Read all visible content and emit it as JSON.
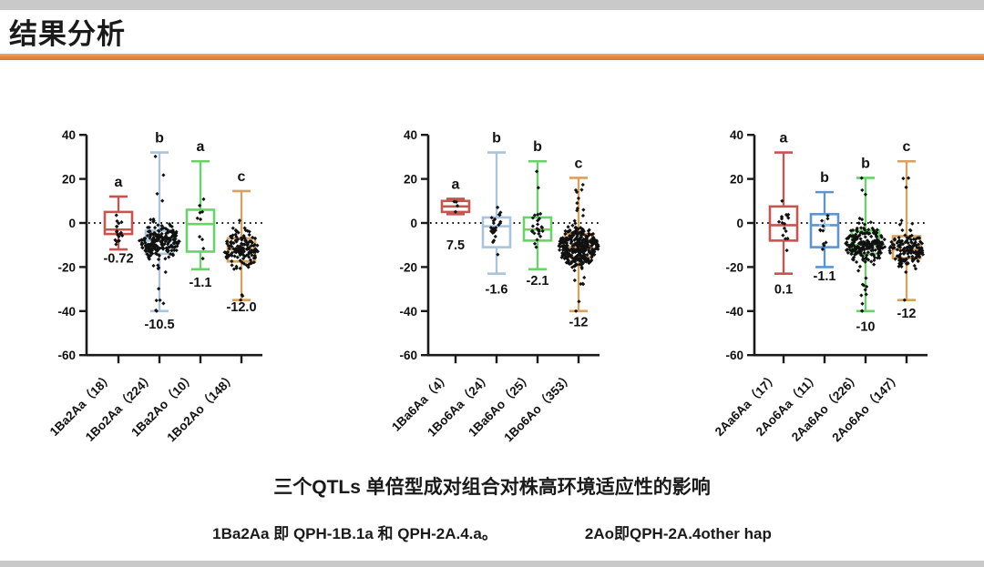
{
  "header": {
    "title": "结果分析",
    "accent_color": "#E2873E",
    "frame_bar_color": "#C9C9C9"
  },
  "caption": {
    "text": "三个QTLs 单倍型成对组合对株高环境适应性的影响",
    "footnote_left": "1Ba2Aa 即 QPH-1B.1a 和 QPH-2A.4.a。",
    "footnote_right": "2Ao即QPH-2A.4other hap"
  },
  "chart_data": {
    "type": "boxplot-scatter",
    "ylim": [
      -60,
      40
    ],
    "yticks": [
      40,
      20,
      0,
      -20,
      -40,
      -60
    ],
    "zero_line_y": 0,
    "grid": false,
    "point_color": "#111111",
    "axis_color": "#1a1a1a",
    "panels": [
      {
        "categories": [
          {
            "label": "1Ba2Aa（18）",
            "n": 18,
            "letter": "a",
            "value_label": "-0.72",
            "value_label_y": -18,
            "color": "#C9544F",
            "box": {
              "low": -12,
              "q1": -5,
              "median": -3,
              "q3": 5,
              "high": 12
            }
          },
          {
            "label": "1Bo2Aa（224）",
            "n": 224,
            "letter": "b",
            "value_label": "-10.5",
            "value_label_y": -48,
            "color": "#A9C4DD",
            "box": {
              "low": -40,
              "q1": -14,
              "median": -8,
              "q3": -3.5,
              "high": 32
            }
          },
          {
            "label": "1Ba2Ao（10）",
            "n": 10,
            "letter": "a",
            "value_label": "-1.1",
            "value_label_y": -29,
            "color": "#68D468",
            "box": {
              "low": -21,
              "q1": -13,
              "median": -0.5,
              "q3": 6,
              "high": 28
            }
          },
          {
            "label": "1Bo2Ao（148）",
            "n": 148,
            "letter": "c",
            "value_label": "-12.0",
            "value_label_y": -40,
            "color": "#D8A15E",
            "box": {
              "low": -35,
              "q1": -17.5,
              "median": -12,
              "q3": -7,
              "high": 14.5
            }
          }
        ]
      },
      {
        "categories": [
          {
            "label": "1Ba6Aa（4）",
            "n": 4,
            "letter": "a",
            "value_label": "7.5",
            "value_label_y": -12,
            "color": "#C9544F",
            "box": {
              "low": 4,
              "q1": 5,
              "median": 7.5,
              "q3": 10,
              "high": 11
            }
          },
          {
            "label": "1Bo6Aa（24）",
            "n": 24,
            "letter": "b",
            "value_label": "-1.6",
            "value_label_y": -32,
            "color": "#A9C4DD",
            "box": {
              "low": -23,
              "q1": -11,
              "median": -1.5,
              "q3": 2.5,
              "high": 32
            }
          },
          {
            "label": "1Ba6Ao（25）",
            "n": 25,
            "letter": "b",
            "value_label": "-2.1",
            "value_label_y": -28,
            "color": "#68D468",
            "box": {
              "low": -21,
              "q1": -8,
              "median": -3,
              "q3": 2.5,
              "high": 28
            }
          },
          {
            "label": "1Bo6Ao（353）",
            "n": 353,
            "letter": "c",
            "value_label": "-12",
            "value_label_y": -47,
            "color": "#D8A15E",
            "box": {
              "low": -40,
              "q1": -15.5,
              "median": -11,
              "q3": -5,
              "high": 20.5
            }
          }
        ]
      },
      {
        "categories": [
          {
            "label": "2Aa6Aa（17）",
            "n": 17,
            "letter": "a",
            "value_label": "0.1",
            "value_label_y": -32,
            "color": "#C9544F",
            "box": {
              "low": -23,
              "q1": -8,
              "median": -1,
              "q3": 7.5,
              "high": 32
            }
          },
          {
            "label": "2Ao6Aa（11）",
            "n": 11,
            "letter": "b",
            "value_label": "-1.1",
            "value_label_y": -26,
            "color": "#5E95CE",
            "box": {
              "low": -20,
              "q1": -11,
              "median": -1,
              "q3": 4,
              "high": 14
            },
            "mean": -1,
            "mean_color": "#9DC3E6"
          },
          {
            "label": "2Aa6Ao（226）",
            "n": 226,
            "letter": "b",
            "value_label": "-10",
            "value_label_y": -49,
            "color": "#68D468",
            "box": {
              "low": -40,
              "q1": -14,
              "median": -10,
              "q3": -3.5,
              "high": 20.5
            }
          },
          {
            "label": "2Ao6Ao（147）",
            "n": 147,
            "letter": "c",
            "value_label": "-12",
            "value_label_y": -43,
            "color": "#D8A15E",
            "box": {
              "low": -35,
              "q1": -16,
              "median": -12,
              "q3": -6,
              "high": 28
            }
          }
        ]
      }
    ]
  }
}
